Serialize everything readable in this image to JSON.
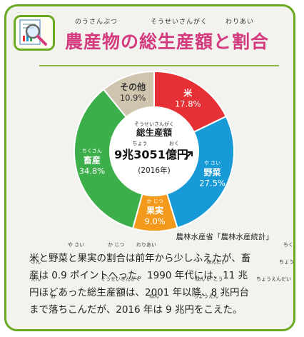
{
  "header": {
    "title": "農産物の総生産額と割合",
    "ruby": [
      "のうさんぶつ",
      "そうせいさんがく",
      "わりあい"
    ]
  },
  "chart_data": {
    "type": "pie",
    "title": "農産物の総生産額と割合",
    "center": {
      "label": "総生産額",
      "label_ruby": "そうせいさんがく",
      "value": "9兆3051億円",
      "value_ruby": [
        "ちょう",
        "おく"
      ],
      "year": "(2016年)"
    },
    "slices": [
      {
        "name": "米",
        "label": "米",
        "ruby": "",
        "value": 17.8,
        "text": "17.8%",
        "color": "#e63036"
      },
      {
        "name": "野菜",
        "label": "野菜",
        "ruby": "や さい",
        "value": 27.5,
        "text": "27.5%",
        "color": "#189ad6"
      },
      {
        "name": "果実",
        "label": "果実",
        "ruby": "か じつ",
        "value": 9.0,
        "text": "9.0%",
        "color": "#f39a1c"
      },
      {
        "name": "畜産",
        "label": "畜産",
        "ruby": "ちくさん",
        "value": 34.8,
        "text": "34.8%",
        "color": "#3cae4a"
      },
      {
        "name": "その他",
        "label": "その他",
        "ruby": "",
        "value": 10.9,
        "text": "10.9%",
        "color": "#cfc4ad"
      }
    ],
    "source": "農林水産省「農林水産統計」"
  },
  "body": {
    "lines": [
      {
        "text": "米と野菜と果実の割合は前年から少しふえたが、畜",
        "ruby": [
          "や さい",
          "か じつ",
          "わりあい",
          "ちく"
        ]
      },
      {
        "text": "産は 0.9 ポイントへった。1990 年代には、11 兆",
        "ruby": [
          "さん",
          "ねんだい",
          "ちょう"
        ]
      },
      {
        "text": "円ほどあった総生産額は、2001 年以降、8 兆円台",
        "ruby": [
          "えん",
          "そうせいさんがく",
          "ねん い こう",
          "ちょうえんだい"
        ]
      },
      {
        "text": "まで落ちこんだが、2016 年は 9 兆円をこえた。",
        "ruby": [
          "お",
          "ねん",
          "ちょうえん"
        ]
      }
    ]
  },
  "colors": {
    "border": "#6aaa22",
    "title": "#d43b7e",
    "background": "#f2f2ee"
  }
}
